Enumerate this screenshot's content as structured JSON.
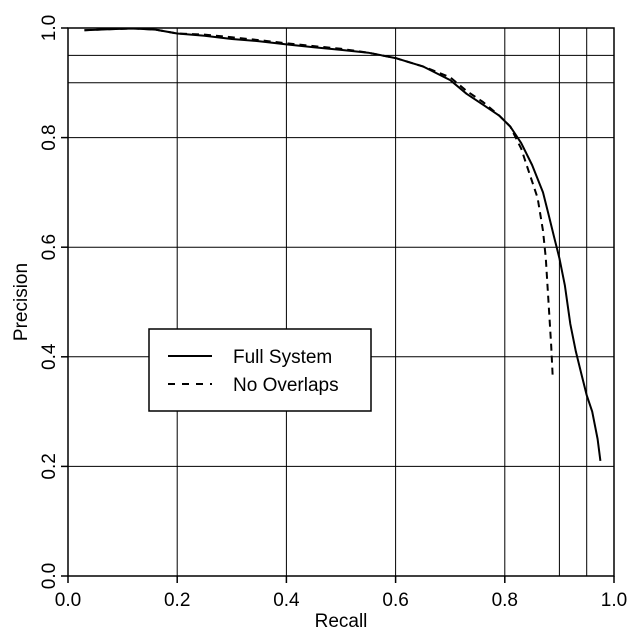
{
  "chart_data": {
    "type": "line",
    "title": "",
    "xlabel": "Recall",
    "ylabel": "Precision",
    "xlim": [
      0,
      1
    ],
    "ylim": [
      0,
      1
    ],
    "xticks": [
      "0.0",
      "0.2",
      "0.4",
      "0.6",
      "0.8",
      "1.0"
    ],
    "yticks": [
      "0.0",
      "0.2",
      "0.4",
      "0.6",
      "0.8",
      "1.0"
    ],
    "grid": {
      "x_lines": [
        0.2,
        0.4,
        0.6,
        0.8,
        0.9,
        0.95
      ],
      "y_lines": [
        0.2,
        0.4,
        0.6,
        0.8,
        0.9,
        0.95
      ]
    },
    "legend_position": "center-left",
    "series": [
      {
        "name": "Full System",
        "style": "solid",
        "color": "#000000",
        "x": [
          0.03,
          0.08,
          0.12,
          0.16,
          0.2,
          0.25,
          0.3,
          0.35,
          0.4,
          0.45,
          0.5,
          0.55,
          0.6,
          0.65,
          0.7,
          0.73,
          0.76,
          0.79,
          0.81,
          0.83,
          0.85,
          0.87,
          0.88,
          0.89,
          0.9,
          0.91,
          0.92,
          0.93,
          0.94,
          0.95,
          0.96,
          0.97,
          0.975
        ],
        "y": [
          0.996,
          0.998,
          0.999,
          0.997,
          0.99,
          0.986,
          0.98,
          0.976,
          0.97,
          0.965,
          0.96,
          0.955,
          0.945,
          0.93,
          0.905,
          0.88,
          0.86,
          0.84,
          0.82,
          0.79,
          0.75,
          0.7,
          0.66,
          0.62,
          0.58,
          0.53,
          0.46,
          0.41,
          0.37,
          0.33,
          0.3,
          0.25,
          0.21
        ]
      },
      {
        "name": "No Overlaps",
        "style": "dashed",
        "color": "#000000",
        "x": [
          0.03,
          0.08,
          0.12,
          0.16,
          0.2,
          0.25,
          0.3,
          0.35,
          0.4,
          0.45,
          0.5,
          0.55,
          0.6,
          0.65,
          0.7,
          0.73,
          0.76,
          0.79,
          0.81,
          0.82,
          0.83,
          0.84,
          0.85,
          0.86,
          0.865,
          0.87,
          0.875,
          0.88,
          0.885,
          0.888
        ],
        "y": [
          0.996,
          0.998,
          0.999,
          0.997,
          0.99,
          0.988,
          0.983,
          0.978,
          0.972,
          0.967,
          0.962,
          0.955,
          0.945,
          0.93,
          0.91,
          0.885,
          0.865,
          0.84,
          0.82,
          0.8,
          0.78,
          0.75,
          0.72,
          0.69,
          0.66,
          0.63,
          0.58,
          0.5,
          0.42,
          0.36
        ]
      }
    ]
  }
}
